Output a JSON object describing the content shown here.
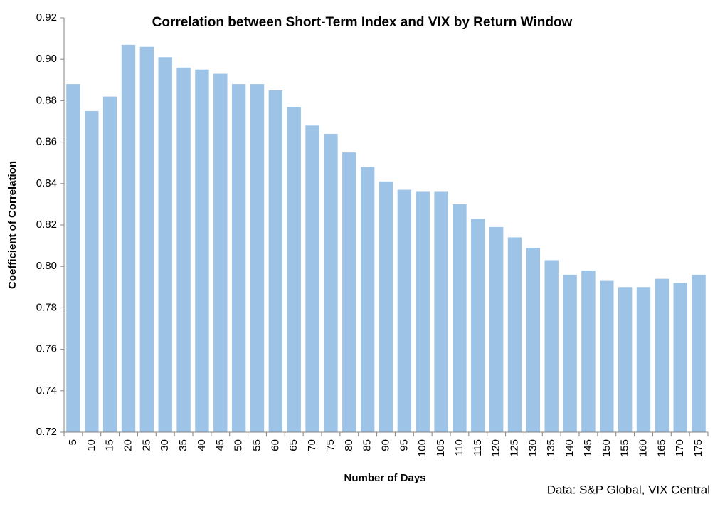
{
  "chart_data": {
    "type": "bar",
    "title": "Correlation between Short-Term Index and VIX by Return Window",
    "x_label": "Number of Days",
    "y_label": "Coefficient of Correlation",
    "note": "Data: S&P Global, VIX Central",
    "categories": [
      "5",
      "10",
      "15",
      "20",
      "25",
      "30",
      "35",
      "40",
      "45",
      "50",
      "55",
      "60",
      "65",
      "70",
      "75",
      "80",
      "85",
      "90",
      "95",
      "100",
      "105",
      "110",
      "115",
      "120",
      "125",
      "130",
      "135",
      "140",
      "145",
      "150",
      "155",
      "160",
      "165",
      "170",
      "175"
    ],
    "values": [
      0.888,
      0.875,
      0.882,
      0.907,
      0.906,
      0.901,
      0.896,
      0.895,
      0.893,
      0.888,
      0.888,
      0.885,
      0.877,
      0.868,
      0.864,
      0.855,
      0.848,
      0.841,
      0.837,
      0.836,
      0.836,
      0.83,
      0.823,
      0.819,
      0.814,
      0.809,
      0.803,
      0.796,
      0.798,
      0.793,
      0.79,
      0.79,
      0.794,
      0.792,
      0.796
    ],
    "color": "#9dc3e6",
    "ylim": [
      0.72,
      0.92
    ],
    "yticks": [
      0.72,
      0.74,
      0.76,
      0.78,
      {
        "value": 0.8,
        "label": "0.80"
      },
      0.82,
      0.84,
      0.86,
      0.88,
      {
        "value": 0.9,
        "label": "0.90"
      },
      0.92
    ],
    "grid": false
  }
}
